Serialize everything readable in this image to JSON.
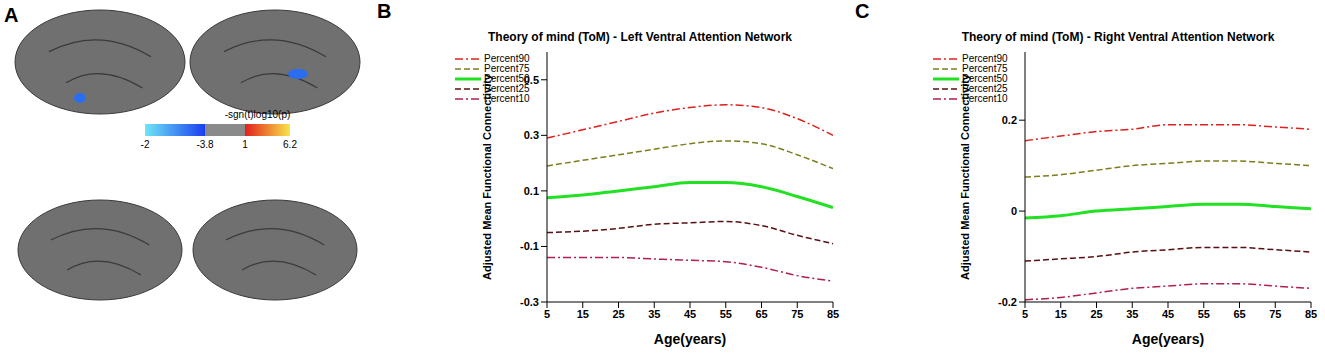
{
  "chart_data": [
    {
      "type": "surface_map",
      "panel_label": "A",
      "colorbar_label": "-sgn(t)log10(p)",
      "colorbar_ticks": [
        -2,
        -3.8,
        1,
        6.2
      ]
    },
    {
      "type": "line",
      "panel_label": "B",
      "title": "Theory of mind (ToM) - Left Ventral Attention Network",
      "x_label": "Age(years)",
      "y_label": "Adjusted Mean Functional Connectivity",
      "x": [
        5,
        15,
        25,
        35,
        45,
        55,
        65,
        75,
        85
      ],
      "xlim": [
        5,
        85
      ],
      "xticks": [
        5,
        15,
        25,
        35,
        45,
        55,
        65,
        75,
        85
      ],
      "ylim": [
        -0.3,
        0.6
      ],
      "yticks": [
        -0.3,
        -0.1,
        0.1,
        0.3,
        0.5
      ],
      "legend": "upper left",
      "grid": false,
      "series": [
        {
          "name": "Percent90",
          "color": "#e0201b",
          "line_style": "dashdot",
          "values": [
            0.29,
            0.32,
            0.35,
            0.38,
            0.4,
            0.41,
            0.4,
            0.36,
            0.3
          ]
        },
        {
          "name": "Percent75",
          "color": "#7d7d1e",
          "line_style": "dashed",
          "values": [
            0.19,
            0.21,
            0.23,
            0.25,
            0.27,
            0.28,
            0.27,
            0.23,
            0.18
          ]
        },
        {
          "name": "Percent50",
          "color": "#22e022",
          "line_style": "solid",
          "values": [
            0.075,
            0.085,
            0.1,
            0.115,
            0.13,
            0.13,
            0.115,
            0.08,
            0.04
          ]
        },
        {
          "name": "Percent25",
          "color": "#5a1010",
          "line_style": "dashed",
          "values": [
            -0.05,
            -0.045,
            -0.035,
            -0.02,
            -0.015,
            -0.01,
            -0.025,
            -0.06,
            -0.09
          ]
        },
        {
          "name": "Percent10",
          "color": "#b0204a",
          "line_style": "dashdot",
          "values": [
            -0.14,
            -0.14,
            -0.14,
            -0.145,
            -0.15,
            -0.155,
            -0.175,
            -0.205,
            -0.225
          ]
        }
      ]
    },
    {
      "type": "line",
      "panel_label": "C",
      "title": "Theory of mind (ToM) - Right Ventral Attention Network",
      "x_label": "Age(years)",
      "y_label": "Adjusted Mean Functional Connectivity",
      "x": [
        5,
        15,
        25,
        35,
        45,
        55,
        65,
        75,
        85
      ],
      "xlim": [
        5,
        85
      ],
      "xticks": [
        5,
        15,
        25,
        35,
        45,
        55,
        65,
        75,
        85
      ],
      "ylim": [
        -0.2,
        0.35
      ],
      "yticks": [
        -0.2,
        0,
        0.2
      ],
      "legend": "upper left",
      "grid": false,
      "series": [
        {
          "name": "Percent90",
          "color": "#e0201b",
          "line_style": "dashdot",
          "values": [
            0.155,
            0.165,
            0.175,
            0.18,
            0.19,
            0.19,
            0.19,
            0.185,
            0.18
          ]
        },
        {
          "name": "Percent75",
          "color": "#7d7d1e",
          "line_style": "dashed",
          "values": [
            0.075,
            0.08,
            0.09,
            0.1,
            0.105,
            0.11,
            0.11,
            0.105,
            0.1
          ]
        },
        {
          "name": "Percent50",
          "color": "#22e022",
          "line_style": "solid",
          "values": [
            -0.015,
            -0.01,
            0.0,
            0.005,
            0.01,
            0.015,
            0.015,
            0.01,
            0.005
          ]
        },
        {
          "name": "Percent25",
          "color": "#5a1010",
          "line_style": "dashed",
          "values": [
            -0.11,
            -0.105,
            -0.1,
            -0.09,
            -0.085,
            -0.08,
            -0.08,
            -0.085,
            -0.09
          ]
        },
        {
          "name": "Percent10",
          "color": "#b0204a",
          "line_style": "dashdot",
          "values": [
            -0.195,
            -0.19,
            -0.18,
            -0.17,
            -0.165,
            -0.16,
            -0.16,
            -0.165,
            -0.17
          ]
        }
      ]
    }
  ]
}
